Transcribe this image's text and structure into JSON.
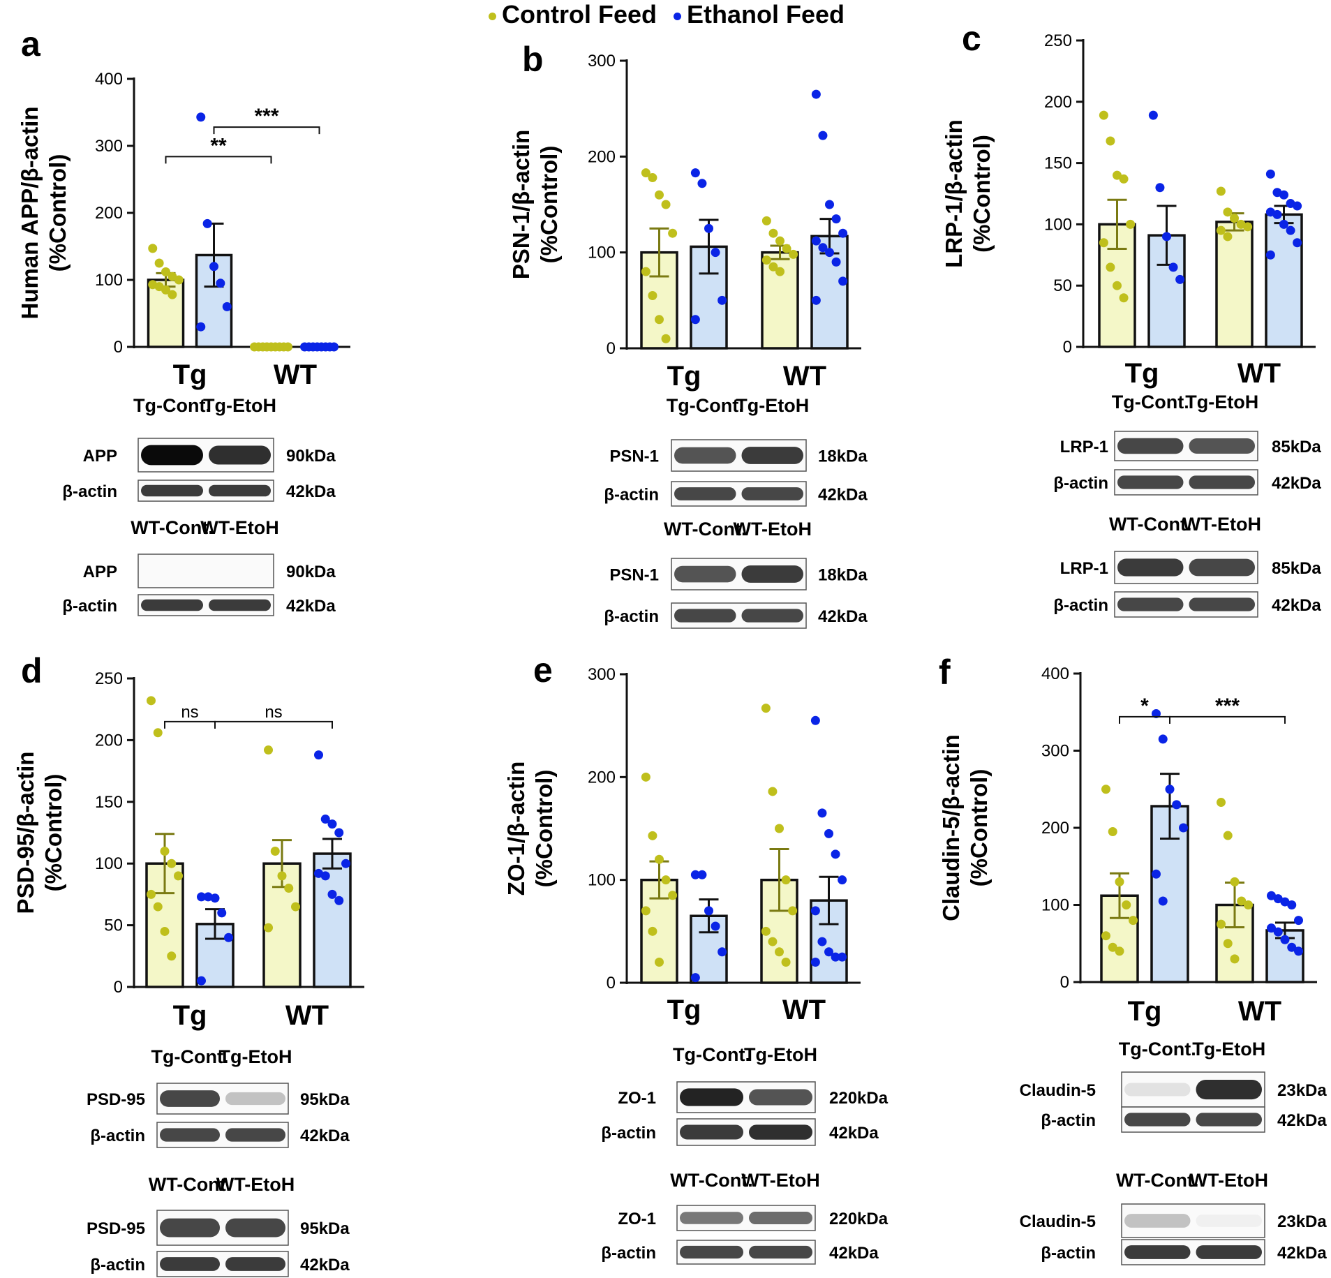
{
  "legend": [
    {
      "label": "Control Feed",
      "color": "#bfbf1c"
    },
    {
      "label": "Ethanol Feed",
      "color": "#0a24e6"
    }
  ],
  "colors": {
    "control_fill": "#f4f7c8",
    "ethanol_fill": "#cfe1f6",
    "control_dot": "#bfbf1c",
    "ethanol_dot": "#0a24e6",
    "bar_edge": "#111111",
    "control_err": "#7a7a12",
    "ethanol_err": "#111111"
  },
  "chart_data": [
    {
      "panel": "a",
      "type": "bar",
      "ylabel": [
        "Human APP/β-actin",
        "(%Control)"
      ],
      "ylim": [
        0,
        400
      ],
      "ticks": [
        0,
        100,
        200,
        300,
        400
      ],
      "categories": [
        "Tg",
        "WT"
      ],
      "series": [
        {
          "name": "Control Feed",
          "values": [
            100,
            0
          ],
          "errors": [
            10,
            0
          ],
          "points": [
            [
              147,
              125,
              112,
              105,
              100,
              93,
              90,
              85,
              78
            ],
            [
              0,
              0,
              0,
              0,
              0,
              0,
              0,
              0,
              0
            ]
          ]
        },
        {
          "name": "Ethanol Feed",
          "values": [
            137,
            0
          ],
          "errors": [
            47,
            0
          ],
          "points": [
            [
              343,
              184,
              120,
              95,
              60,
              30
            ],
            [
              0,
              0,
              0,
              0,
              0,
              0,
              0,
              0
            ]
          ]
        }
      ],
      "brackets": [
        {
          "from": "Tg-Control Feed",
          "to": "WT-Control Feed",
          "label": "**"
        },
        {
          "from": "Tg-Ethanol Feed",
          "to": "WT-Ethanol Feed",
          "label": "***"
        }
      ],
      "blots": {
        "groups": [
          {
            "headers": [
              "Tg-Cont.",
              "Tg-EtoH"
            ],
            "rows": [
              {
                "label": "APP",
                "kda": "90kDa",
                "intensities": [
                  1.0,
                  0.85
                ]
              },
              {
                "label": "β-actin",
                "kda": "42kDa",
                "intensities": [
                  0.8,
                  0.8
                ]
              }
            ]
          },
          {
            "headers": [
              "WT-Cont.",
              "WT-EtoH"
            ],
            "rows": [
              {
                "label": "APP",
                "kda": "90kDa",
                "intensities": [
                  0,
                  0
                ]
              },
              {
                "label": "β-actin",
                "kda": "42kDa",
                "intensities": [
                  0.8,
                  0.8
                ]
              }
            ]
          }
        ]
      }
    },
    {
      "panel": "b",
      "type": "bar",
      "ylabel": [
        "PSN-1/β-actin",
        "(%Control)"
      ],
      "ylim": [
        0,
        300
      ],
      "ticks": [
        0,
        100,
        200,
        300
      ],
      "categories": [
        "Tg",
        "WT"
      ],
      "series": [
        {
          "name": "Control Feed",
          "values": [
            100,
            100
          ],
          "errors": [
            25,
            7
          ],
          "points": [
            [
              183,
              178,
              160,
              150,
              120,
              80,
              55,
              30,
              10
            ],
            [
              133,
              120,
              112,
              104,
              98,
              92,
              85,
              80
            ]
          ]
        },
        {
          "name": "Ethanol Feed",
          "values": [
            106,
            117
          ],
          "errors": [
            28,
            18
          ],
          "points": [
            [
              183,
              172,
              125,
              100,
              50,
              30
            ],
            [
              265,
              222,
              150,
              135,
              120,
              112,
              105,
              100,
              90,
              70,
              50
            ]
          ]
        }
      ],
      "brackets": [],
      "blots": {
        "groups": [
          {
            "headers": [
              "Tg-Cont.",
              "Tg-EtoH"
            ],
            "rows": [
              {
                "label": "PSN-1",
                "kda": "18kDa",
                "intensities": [
                  0.7,
                  0.8
                ]
              },
              {
                "label": "β-actin",
                "kda": "42kDa",
                "intensities": [
                  0.75,
                  0.75
                ]
              }
            ]
          },
          {
            "headers": [
              "WT-Cont.",
              "WT-EtoH"
            ],
            "rows": [
              {
                "label": "PSN-1",
                "kda": "18kDa",
                "intensities": [
                  0.7,
                  0.8
                ]
              },
              {
                "label": "β-actin",
                "kda": "42kDa",
                "intensities": [
                  0.75,
                  0.75
                ]
              }
            ]
          }
        ]
      }
    },
    {
      "panel": "c",
      "type": "bar",
      "ylabel": [
        "LRP-1/β-actin",
        "(%Control)"
      ],
      "ylim": [
        0,
        250
      ],
      "ticks": [
        0,
        50,
        100,
        150,
        200,
        250
      ],
      "categories": [
        "Tg",
        "WT"
      ],
      "series": [
        {
          "name": "Control Feed",
          "values": [
            100,
            102
          ],
          "errors": [
            20,
            7
          ],
          "points": [
            [
              189,
              168,
              140,
              137,
              100,
              85,
              65,
              50,
              40
            ],
            [
              127,
              110,
              105,
              100,
              98,
              95,
              90
            ]
          ]
        },
        {
          "name": "Ethanol Feed",
          "values": [
            91,
            108
          ],
          "errors": [
            24,
            7
          ],
          "points": [
            [
              189,
              130,
              90,
              65,
              55
            ],
            [
              141,
              126,
              124,
              117,
              115,
              110,
              108,
              100,
              95,
              85,
              75
            ]
          ]
        }
      ],
      "brackets": [],
      "blots": {
        "groups": [
          {
            "headers": [
              "Tg-Cont.",
              "Tg-EtoH"
            ],
            "rows": [
              {
                "label": "LRP-1",
                "kda": "85kDa",
                "intensities": [
                  0.75,
                  0.7
                ]
              },
              {
                "label": "β-actin",
                "kda": "42kDa",
                "intensities": [
                  0.75,
                  0.75
                ]
              }
            ]
          },
          {
            "headers": [
              "WT-Cont.",
              "WT-EtoH"
            ],
            "rows": [
              {
                "label": "LRP-1",
                "kda": "85kDa",
                "intensities": [
                  0.8,
                  0.75
                ]
              },
              {
                "label": "β-actin",
                "kda": "42kDa",
                "intensities": [
                  0.75,
                  0.75
                ]
              }
            ]
          }
        ]
      }
    },
    {
      "panel": "d",
      "type": "bar",
      "ylabel": [
        "PSD-95/β-actin",
        "(%Control)"
      ],
      "ylim": [
        0,
        250
      ],
      "ticks": [
        0,
        50,
        100,
        150,
        200,
        250
      ],
      "categories": [
        "Tg",
        "WT"
      ],
      "series": [
        {
          "name": "Control Feed",
          "values": [
            100,
            100
          ],
          "errors": [
            24,
            19
          ],
          "points": [
            [
              232,
              206,
              110,
              100,
              90,
              75,
              65,
              45,
              25
            ],
            [
              192,
              110,
              90,
              80,
              65,
              48
            ]
          ]
        },
        {
          "name": "Ethanol Feed",
          "values": [
            51,
            108
          ],
          "errors": [
            12,
            12
          ],
          "points": [
            [
              73,
              73,
              72,
              60,
              40,
              5
            ],
            [
              188,
              136,
              132,
              125,
              100,
              92,
              90,
              75,
              70
            ]
          ]
        }
      ],
      "brackets": [
        {
          "from": "Tg-Control Feed",
          "to": "Tg-Ethanol Feed",
          "label": "ns"
        },
        {
          "from": "Tg-Ethanol Feed",
          "to": "WT-Ethanol Feed",
          "label": "ns"
        }
      ],
      "blots": {
        "groups": [
          {
            "headers": [
              "Tg-Cont.",
              "Tg-EtoH"
            ],
            "rows": [
              {
                "label": "PSD-95",
                "kda": "95kDa",
                "intensities": [
                  0.75,
                  0.25
                ]
              },
              {
                "label": "β-actin",
                "kda": "42kDa",
                "intensities": [
                  0.75,
                  0.75
                ]
              }
            ]
          },
          {
            "headers": [
              "WT-Cont.",
              "WT-EtoH"
            ],
            "rows": [
              {
                "label": "PSD-95",
                "kda": "95kDa",
                "intensities": [
                  0.75,
                  0.75
                ]
              },
              {
                "label": "β-actin",
                "kda": "42kDa",
                "intensities": [
                  0.8,
                  0.8
                ]
              }
            ]
          }
        ]
      }
    },
    {
      "panel": "e",
      "type": "bar",
      "ylabel": [
        "ZO-1/β-actin",
        "(%Control)"
      ],
      "ylim": [
        0,
        300
      ],
      "ticks": [
        0,
        100,
        200,
        300
      ],
      "categories": [
        "Tg",
        "WT"
      ],
      "series": [
        {
          "name": "Control Feed",
          "values": [
            100,
            100
          ],
          "errors": [
            18,
            30
          ],
          "points": [
            [
              200,
              143,
              120,
              100,
              85,
              70,
              50,
              20
            ],
            [
              267,
              186,
              150,
              100,
              70,
              50,
              40,
              30,
              20
            ]
          ]
        },
        {
          "name": "Ethanol Feed",
          "values": [
            65,
            80
          ],
          "errors": [
            16,
            23
          ],
          "points": [
            [
              105,
              105,
              70,
              55,
              30,
              5
            ],
            [
              255,
              165,
              145,
              125,
              100,
              70,
              40,
              30,
              25,
              25,
              20
            ]
          ]
        }
      ],
      "brackets": [],
      "blots": {
        "groups": [
          {
            "headers": [
              "Tg-Cont.",
              "Tg-EtoH"
            ],
            "rows": [
              {
                "label": "ZO-1",
                "kda": "220kDa",
                "intensities": [
                  0.9,
                  0.7
                ]
              },
              {
                "label": "β-actin",
                "kda": "42kDa",
                "intensities": [
                  0.8,
                  0.85
                ]
              }
            ]
          },
          {
            "headers": [
              "WT-Cont.",
              "WT-EtoH"
            ],
            "rows": [
              {
                "label": "ZO-1",
                "kda": "220kDa",
                "intensities": [
                  0.55,
                  0.6
                ]
              },
              {
                "label": "β-actin",
                "kda": "42kDa",
                "intensities": [
                  0.75,
                  0.75
                ]
              }
            ]
          }
        ]
      }
    },
    {
      "panel": "f",
      "type": "bar",
      "ylabel": [
        "Claudin-5/β-actin",
        "(%Control)"
      ],
      "ylim": [
        0,
        400
      ],
      "ticks": [
        0,
        100,
        200,
        300,
        400
      ],
      "categories": [
        "Tg",
        "WT"
      ],
      "series": [
        {
          "name": "Control Feed",
          "values": [
            112,
            100
          ],
          "errors": [
            29,
            29
          ],
          "points": [
            [
              250,
              195,
              130,
              100,
              80,
              60,
              45,
              40
            ],
            [
              233,
              190,
              130,
              105,
              100,
              75,
              50,
              30
            ]
          ]
        },
        {
          "name": "Ethanol Feed",
          "values": [
            228,
            67
          ],
          "errors": [
            42,
            10
          ],
          "points": [
            [
              348,
              315,
              250,
              230,
              200,
              140,
              105
            ],
            [
              112,
              108,
              104,
              100,
              80,
              70,
              65,
              55,
              45,
              40
            ]
          ]
        }
      ],
      "brackets": [
        {
          "from": "Tg-Control Feed",
          "to": "Tg-Ethanol Feed",
          "label": "*"
        },
        {
          "from": "Tg-Ethanol Feed",
          "to": "WT-Ethanol Feed",
          "label": "***"
        }
      ],
      "blots": {
        "groups": [
          {
            "headers": [
              "Tg-Cont.",
              "Tg-EtoH"
            ],
            "rows": [
              {
                "label": "Claudin-5",
                "kda": "23kDa",
                "intensities": [
                  0.12,
                  0.85
                ]
              },
              {
                "label": "β-actin",
                "kda": "42kDa",
                "intensities": [
                  0.75,
                  0.75
                ]
              }
            ]
          },
          {
            "headers": [
              "WT-Cont.",
              "WT-EtoH"
            ],
            "rows": [
              {
                "label": "Claudin-5",
                "kda": "23kDa",
                "intensities": [
                  0.25,
                  0.06
                ]
              },
              {
                "label": "β-actin",
                "kda": "42kDa",
                "intensities": [
                  0.8,
                  0.8
                ]
              }
            ]
          }
        ]
      }
    }
  ]
}
